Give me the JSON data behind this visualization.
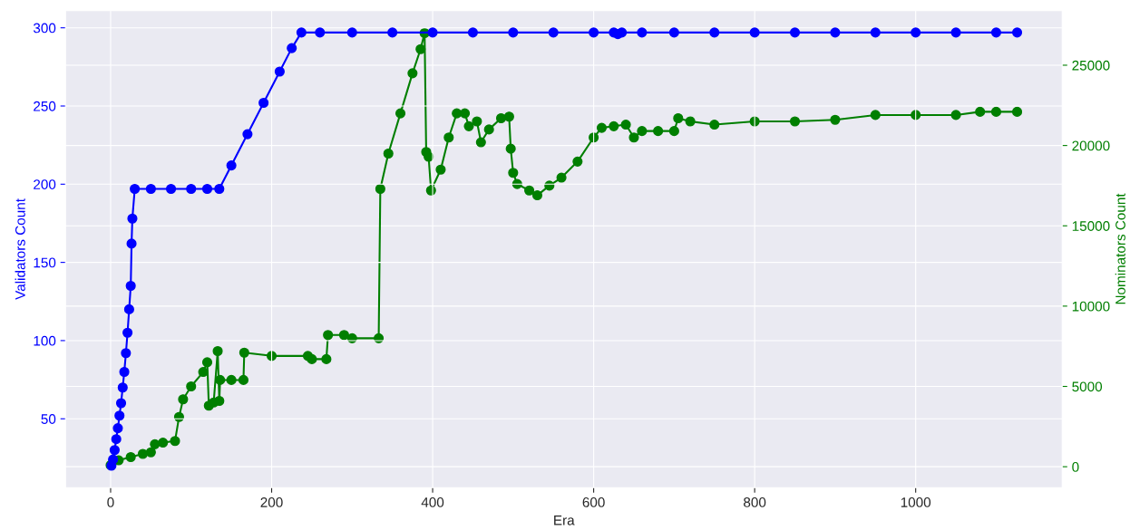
{
  "chart_data": {
    "type": "line",
    "xlabel": "Era",
    "ylabel": "Validators Count",
    "y2label": "Nominators Count",
    "xlim": [
      -56,
      1182
    ],
    "xticks": [
      0,
      200,
      400,
      600,
      800,
      1000
    ],
    "ylim": [
      6,
      311
    ],
    "yticks": [
      50,
      100,
      150,
      200,
      250,
      300
    ],
    "y2lim": [
      -1300,
      28400
    ],
    "y2ticks": [
      0,
      5000,
      10000,
      15000,
      20000,
      25000
    ],
    "grid": true,
    "marker": "circle",
    "line_style": "solid",
    "series": [
      {
        "color": "#0000ff",
        "x": [
          1,
          3,
          5,
          7,
          9,
          11,
          13,
          15,
          17,
          19,
          21,
          23,
          25,
          26,
          27,
          30,
          50,
          75,
          100,
          120,
          135,
          150,
          170,
          190,
          210,
          225,
          237,
          260,
          300,
          350,
          400,
          450,
          500,
          550,
          600,
          625,
          630,
          635,
          660,
          700,
          750,
          800,
          850,
          900,
          950,
          1000,
          1050,
          1100,
          1126
        ],
        "values": [
          20,
          24,
          30,
          37,
          44,
          52,
          60,
          70,
          80,
          92,
          105,
          120,
          135,
          162,
          178,
          197,
          197,
          197,
          197,
          197,
          197,
          212,
          232,
          252,
          272,
          287,
          297,
          297,
          297,
          297,
          297,
          297,
          297,
          297,
          297,
          297,
          296,
          297,
          297,
          297,
          297,
          297,
          297,
          297,
          297,
          297,
          297,
          297,
          297
        ]
      },
      {
        "color": "#007f00",
        "axis": "y2",
        "x": [
          0,
          10,
          25,
          40,
          50,
          55,
          65,
          80,
          85,
          90,
          100,
          115,
          120,
          122,
          128,
          133,
          135,
          136,
          150,
          165,
          166,
          200,
          245,
          250,
          268,
          270,
          290,
          300,
          333,
          335,
          345,
          360,
          375,
          385,
          390,
          392,
          395,
          398,
          410,
          420,
          430,
          440,
          445,
          455,
          460,
          470,
          485,
          495,
          497,
          500,
          505,
          520,
          530,
          545,
          560,
          580,
          600,
          610,
          625,
          640,
          650,
          660,
          680,
          700,
          705,
          720,
          750,
          800,
          850,
          900,
          950,
          1000,
          1050,
          1080,
          1100,
          1126
        ],
        "values": [
          100,
          400,
          600,
          800,
          900,
          1400,
          1500,
          1600,
          3100,
          4200,
          5000,
          5900,
          6500,
          3800,
          4000,
          7200,
          4100,
          5400,
          5400,
          5400,
          7100,
          6900,
          6900,
          6700,
          6700,
          8200,
          8200,
          8000,
          8000,
          17300,
          19500,
          22000,
          24500,
          26000,
          27000,
          19600,
          19300,
          17200,
          18500,
          20500,
          22000,
          22000,
          21200,
          21500,
          20200,
          21000,
          21700,
          21800,
          19800,
          18300,
          17600,
          17200,
          16900,
          17500,
          18000,
          19000,
          20500,
          21100,
          21200,
          21300,
          20500,
          20900,
          20900,
          20900,
          21700,
          21500,
          21300,
          21500,
          21500,
          21600,
          21900,
          21900,
          21900,
          22100,
          22100,
          22100
        ]
      }
    ]
  }
}
